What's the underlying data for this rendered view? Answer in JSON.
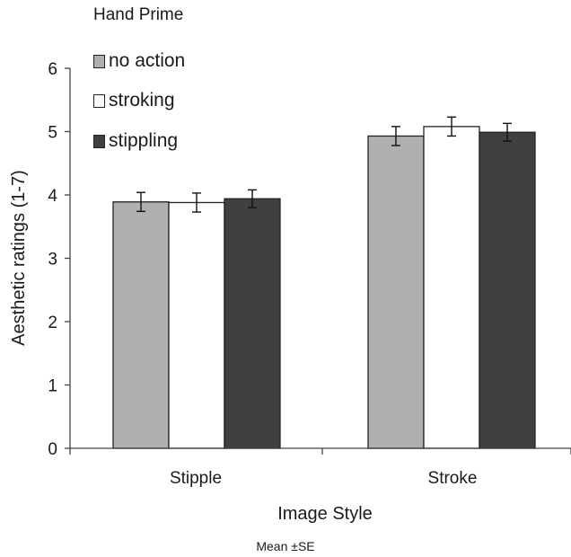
{
  "chart_data": {
    "type": "bar",
    "title": "",
    "xlabel": "Image Style",
    "ylabel": "Aesthetic ratings (1-7)",
    "categories": [
      "Stipple",
      "Stroke"
    ],
    "ylim": [
      0,
      6
    ],
    "yticks": [
      "0",
      "1",
      "2",
      "3",
      "4",
      "5",
      "6"
    ],
    "grid": false,
    "legend_title": "Hand Prime",
    "legend_position": "top-left",
    "series": [
      {
        "name": "no action",
        "color": "#b0b0b0",
        "values": [
          3.89,
          4.93
        ],
        "errors": [
          0.15,
          0.15
        ]
      },
      {
        "name": "stroking",
        "color": "#ffffff",
        "values": [
          3.88,
          5.08
        ],
        "errors": [
          0.15,
          0.15
        ]
      },
      {
        "name": "stippling",
        "color": "#404040",
        "values": [
          3.94,
          4.99
        ],
        "errors": [
          0.14,
          0.14
        ]
      }
    ],
    "annotation": "Mean ±SE"
  }
}
